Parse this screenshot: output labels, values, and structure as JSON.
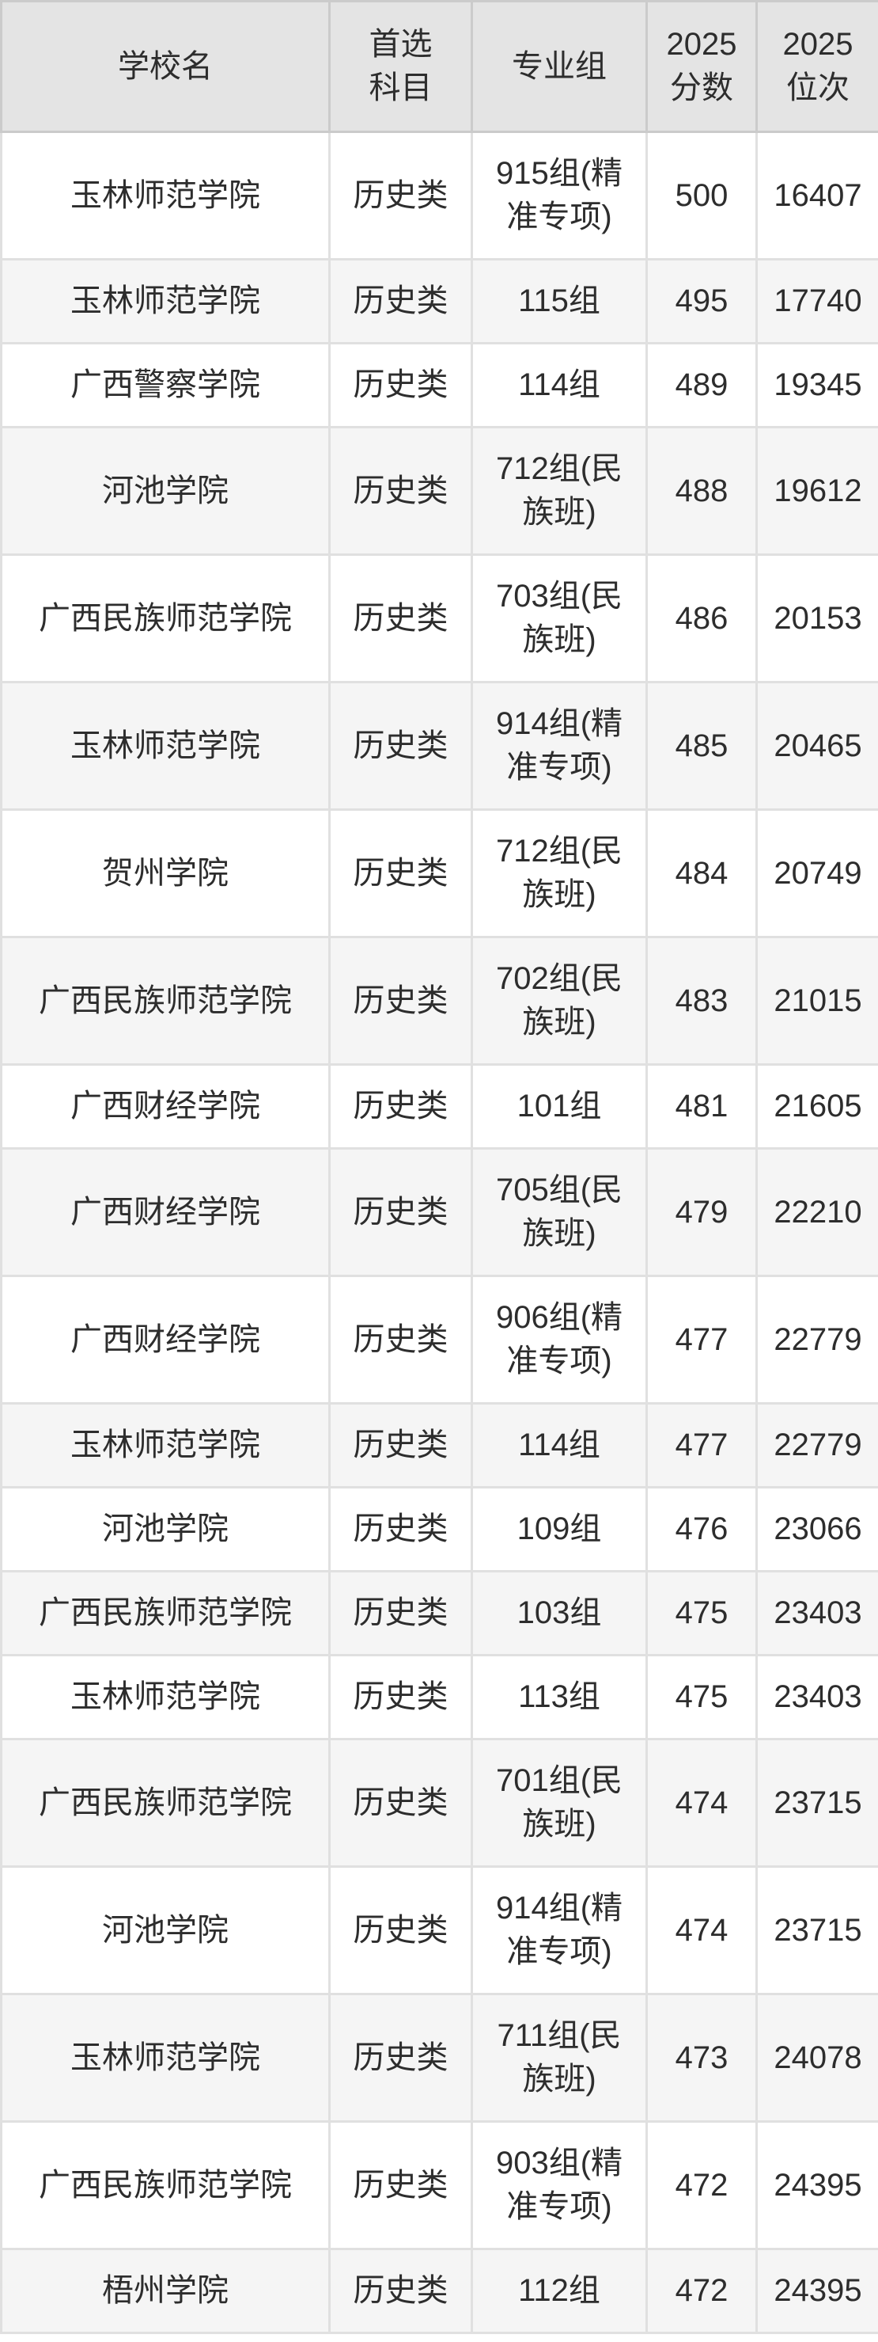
{
  "colors": {
    "header_bg": "#e4e4e4",
    "row_bg": "#ffffff",
    "row_alt_bg": "#f5f5f5",
    "grid_line": "#e0e0e0",
    "header_grid_line": "#cbcbcb",
    "text": "#2d2d2d"
  },
  "table": {
    "headers": [
      "学校名",
      "首选\n科目",
      "专业组",
      "2025\n分数",
      "2025\n位次"
    ],
    "rows": [
      {
        "school": "玉林师范学院",
        "subject": "历史类",
        "group": "915组(精\n准专项)",
        "score": "500",
        "rank": "16407"
      },
      {
        "school": "玉林师范学院",
        "subject": "历史类",
        "group": "115组",
        "score": "495",
        "rank": "17740"
      },
      {
        "school": "广西警察学院",
        "subject": "历史类",
        "group": "114组",
        "score": "489",
        "rank": "19345"
      },
      {
        "school": "河池学院",
        "subject": "历史类",
        "group": "712组(民\n族班)",
        "score": "488",
        "rank": "19612"
      },
      {
        "school": "广西民族师范学院",
        "subject": "历史类",
        "group": "703组(民\n族班)",
        "score": "486",
        "rank": "20153"
      },
      {
        "school": "玉林师范学院",
        "subject": "历史类",
        "group": "914组(精\n准专项)",
        "score": "485",
        "rank": "20465"
      },
      {
        "school": "贺州学院",
        "subject": "历史类",
        "group": "712组(民\n族班)",
        "score": "484",
        "rank": "20749"
      },
      {
        "school": "广西民族师范学院",
        "subject": "历史类",
        "group": "702组(民\n族班)",
        "score": "483",
        "rank": "21015"
      },
      {
        "school": "广西财经学院",
        "subject": "历史类",
        "group": "101组",
        "score": "481",
        "rank": "21605"
      },
      {
        "school": "广西财经学院",
        "subject": "历史类",
        "group": "705组(民\n族班)",
        "score": "479",
        "rank": "22210"
      },
      {
        "school": "广西财经学院",
        "subject": "历史类",
        "group": "906组(精\n准专项)",
        "score": "477",
        "rank": "22779"
      },
      {
        "school": "玉林师范学院",
        "subject": "历史类",
        "group": "114组",
        "score": "477",
        "rank": "22779"
      },
      {
        "school": "河池学院",
        "subject": "历史类",
        "group": "109组",
        "score": "476",
        "rank": "23066"
      },
      {
        "school": "广西民族师范学院",
        "subject": "历史类",
        "group": "103组",
        "score": "475",
        "rank": "23403"
      },
      {
        "school": "玉林师范学院",
        "subject": "历史类",
        "group": "113组",
        "score": "475",
        "rank": "23403"
      },
      {
        "school": "广西民族师范学院",
        "subject": "历史类",
        "group": "701组(民\n族班)",
        "score": "474",
        "rank": "23715"
      },
      {
        "school": "河池学院",
        "subject": "历史类",
        "group": "914组(精\n准专项)",
        "score": "474",
        "rank": "23715"
      },
      {
        "school": "玉林师范学院",
        "subject": "历史类",
        "group": "711组(民\n族班)",
        "score": "473",
        "rank": "24078"
      },
      {
        "school": "广西民族师范学院",
        "subject": "历史类",
        "group": "903组(精\n准专项)",
        "score": "472",
        "rank": "24395"
      },
      {
        "school": "梧州学院",
        "subject": "历史类",
        "group": "112组",
        "score": "472",
        "rank": "24395"
      }
    ]
  }
}
